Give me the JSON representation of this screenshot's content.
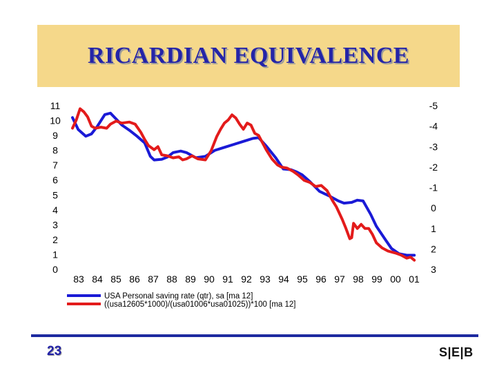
{
  "slide": {
    "title": "RICARDIAN EQUIVALENCE",
    "page_number": "23",
    "logo_text": "S|E|B"
  },
  "colors": {
    "series1": "#1a1ad6",
    "series2": "#e31b1b",
    "title_bg": "#f5d88a",
    "title_text": "#2424a8",
    "footer_line": "#1d2aa0"
  },
  "chart_data": {
    "type": "line",
    "x_tick_labels": [
      "83",
      "84",
      "85",
      "86",
      "87",
      "88",
      "89",
      "90",
      "91",
      "92",
      "93",
      "94",
      "95",
      "96",
      "97",
      "98",
      "99",
      "00",
      "01"
    ],
    "y_left_ticks": [
      "11",
      "10",
      "9",
      "8",
      "7",
      "6",
      "5",
      "4",
      "3",
      "2",
      "1",
      "0"
    ],
    "y_right_ticks": [
      "-5",
      "-4",
      "-3",
      "-2",
      "-1",
      "0",
      "1",
      "2",
      "3"
    ],
    "xlim": [
      1983,
      2001.1
    ],
    "ylim_left": [
      0,
      11
    ],
    "ylim_right_inverted": [
      -5,
      3
    ],
    "grid": false,
    "legend_position": "bottom",
    "series": [
      {
        "name": "USA Personal saving rate (qtr), sa   [ma 12]",
        "axis": "left",
        "color": "#1a1ad6",
        "points": [
          [
            1983.0,
            10.2
          ],
          [
            1983.3,
            9.4
          ],
          [
            1983.7,
            8.95
          ],
          [
            1984.0,
            9.1
          ],
          [
            1984.3,
            9.6
          ],
          [
            1984.7,
            10.4
          ],
          [
            1985.0,
            10.5
          ],
          [
            1985.3,
            10.1
          ],
          [
            1985.6,
            9.7
          ],
          [
            1986.0,
            9.35
          ],
          [
            1986.4,
            8.95
          ],
          [
            1986.8,
            8.5
          ],
          [
            1987.1,
            7.6
          ],
          [
            1987.3,
            7.35
          ],
          [
            1987.7,
            7.4
          ],
          [
            1988.0,
            7.55
          ],
          [
            1988.3,
            7.85
          ],
          [
            1988.7,
            7.95
          ],
          [
            1989.0,
            7.85
          ],
          [
            1989.5,
            7.5
          ],
          [
            1990.0,
            7.6
          ],
          [
            1990.5,
            8.0
          ],
          [
            1991.0,
            8.2
          ],
          [
            1991.5,
            8.4
          ],
          [
            1992.0,
            8.6
          ],
          [
            1992.5,
            8.8
          ],
          [
            1992.8,
            8.85
          ],
          [
            1993.2,
            8.3
          ],
          [
            1993.7,
            7.5
          ],
          [
            1994.1,
            6.75
          ],
          [
            1994.5,
            6.7
          ],
          [
            1994.8,
            6.55
          ],
          [
            1995.1,
            6.35
          ],
          [
            1995.5,
            5.9
          ],
          [
            1996.0,
            5.25
          ],
          [
            1996.5,
            4.95
          ],
          [
            1997.0,
            4.6
          ],
          [
            1997.3,
            4.45
          ],
          [
            1997.7,
            4.5
          ],
          [
            1998.0,
            4.65
          ],
          [
            1998.3,
            4.6
          ],
          [
            1998.7,
            3.7
          ],
          [
            1999.0,
            2.9
          ],
          [
            1999.5,
            1.95
          ],
          [
            1999.8,
            1.4
          ],
          [
            2000.2,
            1.05
          ],
          [
            2000.6,
            0.95
          ],
          [
            2001.0,
            0.95
          ]
        ]
      },
      {
        "name": "((usa12605*1000)/(usa01006*usa01025))*100   [ma 12]",
        "axis": "right_inverted",
        "color": "#e31b1b",
        "points": [
          [
            1983.0,
            -3.9
          ],
          [
            1983.2,
            -4.3
          ],
          [
            1983.4,
            -4.85
          ],
          [
            1983.6,
            -4.7
          ],
          [
            1983.8,
            -4.45
          ],
          [
            1984.0,
            -4.0
          ],
          [
            1984.2,
            -3.9
          ],
          [
            1984.5,
            -3.95
          ],
          [
            1984.8,
            -3.9
          ],
          [
            1985.0,
            -4.1
          ],
          [
            1985.3,
            -4.25
          ],
          [
            1985.6,
            -4.15
          ],
          [
            1986.0,
            -4.2
          ],
          [
            1986.3,
            -4.1
          ],
          [
            1986.6,
            -3.7
          ],
          [
            1986.8,
            -3.35
          ],
          [
            1987.0,
            -3.05
          ],
          [
            1987.3,
            -2.85
          ],
          [
            1987.5,
            -3.0
          ],
          [
            1987.7,
            -2.6
          ],
          [
            1988.0,
            -2.55
          ],
          [
            1988.3,
            -2.45
          ],
          [
            1988.6,
            -2.5
          ],
          [
            1988.8,
            -2.35
          ],
          [
            1989.0,
            -2.4
          ],
          [
            1989.3,
            -2.55
          ],
          [
            1989.6,
            -2.4
          ],
          [
            1990.0,
            -2.35
          ],
          [
            1990.3,
            -2.8
          ],
          [
            1990.6,
            -3.5
          ],
          [
            1990.8,
            -3.85
          ],
          [
            1991.0,
            -4.15
          ],
          [
            1991.2,
            -4.3
          ],
          [
            1991.4,
            -4.55
          ],
          [
            1991.6,
            -4.4
          ],
          [
            1991.8,
            -4.1
          ],
          [
            1992.0,
            -3.85
          ],
          [
            1992.2,
            -4.15
          ],
          [
            1992.4,
            -4.05
          ],
          [
            1992.6,
            -3.65
          ],
          [
            1992.8,
            -3.55
          ],
          [
            1993.0,
            -3.2
          ],
          [
            1993.2,
            -2.85
          ],
          [
            1993.5,
            -2.4
          ],
          [
            1993.8,
            -2.1
          ],
          [
            1994.0,
            -2.0
          ],
          [
            1994.3,
            -1.95
          ],
          [
            1994.6,
            -1.8
          ],
          [
            1994.9,
            -1.6
          ],
          [
            1995.2,
            -1.35
          ],
          [
            1995.5,
            -1.25
          ],
          [
            1995.8,
            -1.05
          ],
          [
            1996.1,
            -1.1
          ],
          [
            1996.4,
            -0.85
          ],
          [
            1996.7,
            -0.35
          ],
          [
            1996.9,
            -0.05
          ],
          [
            1997.2,
            0.55
          ],
          [
            1997.4,
            1.0
          ],
          [
            1997.6,
            1.5
          ],
          [
            1997.7,
            1.45
          ],
          [
            1997.8,
            0.75
          ],
          [
            1998.0,
            1.0
          ],
          [
            1998.2,
            0.8
          ],
          [
            1998.4,
            1.0
          ],
          [
            1998.6,
            1.0
          ],
          [
            1998.8,
            1.3
          ],
          [
            1999.0,
            1.7
          ],
          [
            1999.3,
            1.95
          ],
          [
            1999.6,
            2.1
          ],
          [
            2000.0,
            2.2
          ],
          [
            2000.3,
            2.3
          ],
          [
            2000.6,
            2.45
          ],
          [
            2000.8,
            2.4
          ],
          [
            2001.0,
            2.55
          ]
        ]
      }
    ]
  }
}
